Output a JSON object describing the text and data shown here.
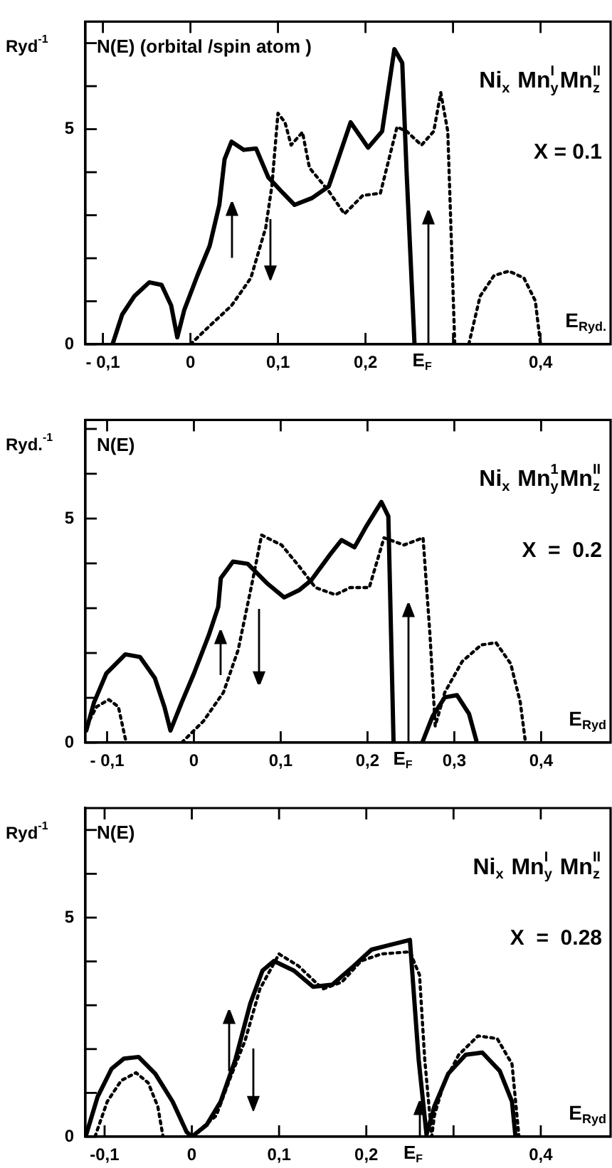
{
  "chart_data": [
    {
      "type": "line",
      "title": "N(E) (orbital /spin atom )",
      "ylabel": "Ryd$^{-1}$",
      "xlabel": "E$_{Ryd.}$",
      "annotations": [
        "Ni$_{x}$ Mn$^{I}$$_{y}$Mn$^{II}$$_{z}$",
        "X = 0.1"
      ],
      "xlim": [
        -0.12,
        0.48
      ],
      "xticks": [
        {
          "value": -0.1,
          "label": "- 0,1"
        },
        {
          "value": 0,
          "label": "0"
        },
        {
          "value": 0.1,
          "label": "0,1"
        },
        {
          "value": 0.2,
          "label": "0,2"
        },
        {
          "value": 0.3,
          "label": null
        },
        {
          "value": 0.4,
          "label": "0,4"
        }
      ],
      "ylim": [
        0,
        7.5
      ],
      "yticks": [
        {
          "value": 0,
          "label": "0"
        },
        {
          "value": 1,
          "label": null
        },
        {
          "value": 2,
          "label": null
        },
        {
          "value": 3,
          "label": null
        },
        {
          "value": 4,
          "label": null
        },
        {
          "value": 5,
          "label": "5"
        },
        {
          "value": 6,
          "label": null
        },
        {
          "value": 7,
          "label": null
        }
      ],
      "ref_lines": [
        {
          "axis": "x",
          "value": 0.272,
          "label": "E$_{F}$"
        }
      ],
      "series": [
        {
          "color": "#000000",
          "line_style": "solid",
          "x": [
            -0.089,
            -0.078,
            -0.064,
            -0.047,
            -0.033,
            -0.022,
            -0.015,
            -0.007,
            0.008,
            0.022,
            0.033,
            0.039,
            0.047,
            0.061,
            0.075,
            0.089,
            0.106,
            0.119,
            0.139,
            0.158,
            0.167,
            0.183,
            0.203,
            0.219,
            0.233,
            0.242,
            0.247,
            0.256
          ],
          "values": [
            0,
            0.69,
            1.12,
            1.44,
            1.38,
            0.9,
            0.16,
            0.8,
            1.6,
            2.29,
            3.24,
            4.3,
            4.71,
            4.52,
            4.55,
            3.88,
            3.51,
            3.24,
            3.4,
            3.67,
            4.2,
            5.16,
            4.57,
            4.95,
            6.86,
            6.54,
            3.99,
            0
          ]
        },
        {
          "color": "#000000",
          "line_style": "dotted",
          "x": [
            0,
            0.019,
            0.047,
            0.069,
            0.086,
            0.093,
            0.1,
            0.108,
            0.115,
            0.128,
            0.136,
            0.158,
            0.176,
            0.197,
            0.217,
            0.236,
            0.247,
            0.264,
            0.278,
            0.286,
            0.294,
            0.302,
            0.31,
            0.318,
            0.331,
            0.347,
            0.364,
            0.381,
            0.394,
            0.4
          ],
          "values": [
            0,
            0.37,
            0.9,
            1.54,
            2.71,
            3.67,
            5.37,
            5.16,
            4.63,
            4.93,
            4.1,
            3.56,
            3.03,
            3.46,
            3.51,
            5.05,
            4.95,
            4.63,
            4.95,
            5.85,
            4.95,
            0,
            null,
            0,
            1.12,
            1.6,
            1.7,
            1.54,
            1.01,
            0
          ]
        }
      ]
    },
    {
      "type": "line",
      "title": "N(E)",
      "ylabel": "Ryd.$^{-1}$",
      "xlabel": "E$_{Ryd}$",
      "annotations": [
        "Ni$_{x}$ Mn$^{1}$$_{y}$Mn$^{II}$$_{z}$",
        "X  =  0.2"
      ],
      "xlim": [
        -0.125,
        0.48
      ],
      "xticks": [
        {
          "value": -0.1,
          "label": "- 0,1"
        },
        {
          "value": 0,
          "label": "0"
        },
        {
          "value": 0.1,
          "label": "0,1"
        },
        {
          "value": 0.2,
          "label": "0,2"
        },
        {
          "value": 0.3,
          "label": "0,3"
        },
        {
          "value": 0.4,
          "label": "0,4"
        }
      ],
      "ylim": [
        0,
        7.2
      ],
      "yticks": [
        {
          "value": 0,
          "label": "0"
        },
        {
          "value": 1,
          "label": null
        },
        {
          "value": 2,
          "label": null
        },
        {
          "value": 3,
          "label": null
        },
        {
          "value": 4,
          "label": null
        },
        {
          "value": 5,
          "label": "5"
        },
        {
          "value": 6,
          "label": null
        },
        {
          "value": 7,
          "label": null
        }
      ],
      "ref_lines": [
        {
          "axis": "x",
          "value": 0.248,
          "label": "E$_{F}$"
        }
      ],
      "series": [
        {
          "color": "#000000",
          "line_style": "solid",
          "x": [
            -0.124,
            -0.115,
            -0.101,
            -0.079,
            -0.062,
            -0.045,
            -0.034,
            -0.027,
            -0.014,
            0,
            0.017,
            0.028,
            0.031,
            0.045,
            0.062,
            0.084,
            0.104,
            0.121,
            0.135,
            0.157,
            0.17,
            0.185,
            0.199,
            0.216,
            0.224,
            0.23,
            0.246,
            0.263,
            0.275,
            0.289,
            0.303,
            0.317,
            0.326
          ],
          "values": [
            0.27,
            0.9,
            1.54,
            1.97,
            1.91,
            1.44,
            0.8,
            0.27,
            0.9,
            1.54,
            2.39,
            3.03,
            3.67,
            4.04,
            3.99,
            3.56,
            3.24,
            3.4,
            3.62,
            4.2,
            4.52,
            4.36,
            4.84,
            5.37,
            5.05,
            0,
            null,
            0,
            0.59,
            1.01,
            1.06,
            0.64,
            0
          ]
        },
        {
          "color": "#000000",
          "line_style": "dotted",
          "x": [
            -0.124,
            -0.112,
            -0.098,
            -0.087,
            -0.078,
            -0.046,
            -0.014,
            0.011,
            0.034,
            0.051,
            0.067,
            0.078,
            0.101,
            0.121,
            0.14,
            0.163,
            0.18,
            0.202,
            0.219,
            0.242,
            0.264,
            0.272,
            0.278,
            0.289,
            0.309,
            0.331,
            0.348,
            0.365,
            0.376,
            0.382
          ],
          "values": [
            0.37,
            0.8,
            0.96,
            0.8,
            0,
            null,
            0,
            0.48,
            1.12,
            2.07,
            3.56,
            4.63,
            4.41,
            3.94,
            3.46,
            3.3,
            3.46,
            3.46,
            4.57,
            4.41,
            4.57,
            2.39,
            0.37,
            1.12,
            1.81,
            2.18,
            2.23,
            1.76,
            0.9,
            0
          ]
        }
      ]
    },
    {
      "type": "line",
      "title": "N(E)",
      "ylabel": "Ryd$^{-1}$",
      "xlabel": "E$_{Ryd}$",
      "annotations": [
        "Ni$_{x}$ Mn$^{I}$$_{y}$ Mn$^{II}$$_{z}$",
        "X  =  0.28"
      ],
      "xlim": [
        -0.122,
        0.48
      ],
      "xticks": [
        {
          "value": -0.1,
          "label": "-0,1"
        },
        {
          "value": 0,
          "label": "0"
        },
        {
          "value": 0.1,
          "label": "0,1"
        },
        {
          "value": 0.2,
          "label": "0,2"
        },
        {
          "value": 0.3,
          "label": null
        },
        {
          "value": 0.4,
          "label": "0,4"
        }
      ],
      "ylim": [
        0,
        7.5
      ],
      "yticks": [
        {
          "value": 0,
          "label": "0"
        },
        {
          "value": 1,
          "label": null
        },
        {
          "value": 2,
          "label": null
        },
        {
          "value": 3,
          "label": null
        },
        {
          "value": 4,
          "label": null
        },
        {
          "value": 5,
          "label": "5"
        },
        {
          "value": 6,
          "label": null
        },
        {
          "value": 7,
          "label": null
        }
      ],
      "ref_lines": [
        {
          "axis": "x",
          "value": 0.261,
          "label": "E$_{F}$"
        }
      ],
      "series": [
        {
          "color": "#000000",
          "line_style": "solid",
          "x": [
            -0.121,
            -0.108,
            -0.092,
            -0.078,
            -0.061,
            -0.042,
            -0.022,
            -0.006,
            0,
            0.017,
            0.033,
            0.05,
            0.067,
            0.081,
            0.094,
            0.117,
            0.139,
            0.161,
            0.183,
            0.206,
            0.228,
            0.25,
            0.26,
            0.269,
            0.278,
            0.294,
            0.314,
            0.333,
            0.353,
            0.367,
            0.371
          ],
          "values": [
            0.05,
            0.91,
            1.55,
            1.78,
            1.82,
            1.44,
            0.8,
            0.11,
            0,
            0.27,
            0.8,
            1.76,
            3.04,
            3.79,
            4.01,
            3.79,
            3.42,
            3.47,
            3.85,
            4.27,
            4.38,
            4.49,
            1.76,
            0.05,
            0.69,
            1.44,
            1.87,
            1.92,
            1.5,
            0.8,
            0
          ]
        },
        {
          "color": "#000000",
          "line_style": "dotted",
          "x": [
            -0.111,
            -0.097,
            -0.081,
            -0.064,
            -0.05,
            -0.039,
            -0.033,
            -0.016,
            0,
            0.028,
            0.044,
            0.061,
            0.078,
            0.1,
            0.122,
            0.15,
            0.172,
            0.194,
            0.217,
            0.25,
            0.261,
            0.267,
            0.275,
            0.278,
            0.289,
            0.306,
            0.328,
            0.35,
            0.367,
            0.375
          ],
          "values": [
            0,
            0.8,
            1.28,
            1.46,
            1.23,
            0.69,
            0,
            null,
            0,
            0.48,
            1.34,
            2.19,
            3.37,
            4.17,
            3.9,
            3.37,
            3.53,
            4.01,
            4.17,
            4.22,
            3.69,
            1.76,
            0,
            0.48,
            1.23,
            1.87,
            2.3,
            2.24,
            1.66,
            0
          ]
        }
      ]
    }
  ]
}
